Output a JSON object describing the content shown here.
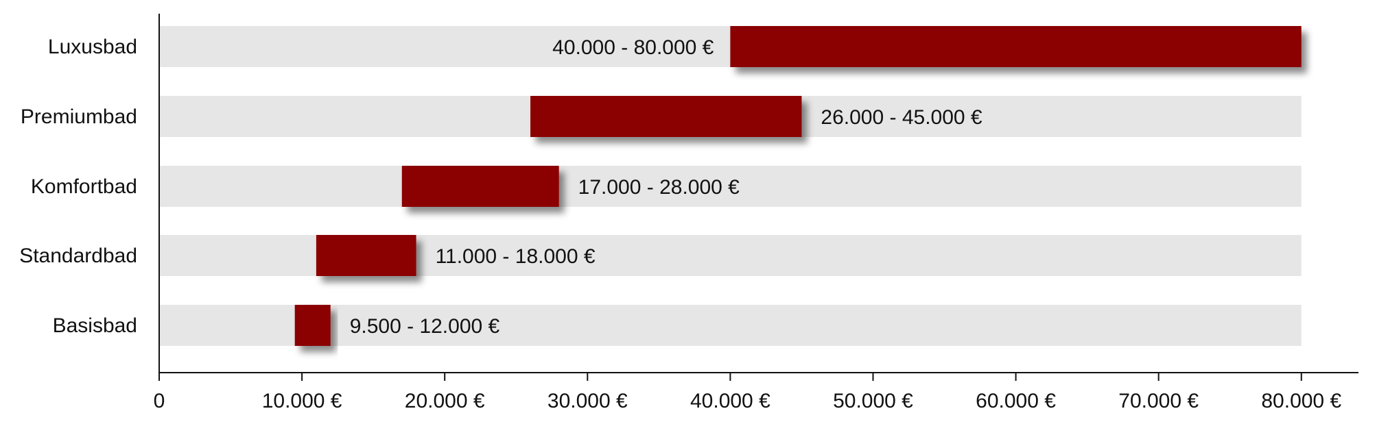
{
  "chart_data": {
    "type": "bar",
    "orientation": "horizontal",
    "subtype": "floating-range",
    "categories": [
      "Luxusbad",
      "Premiumbad",
      "Komfortbad",
      "Standardbad",
      "Basisbad"
    ],
    "ranges": [
      {
        "category": "Luxusbad",
        "min": 40000,
        "max": 80000,
        "label": "40.000 - 80.000 €"
      },
      {
        "category": "Premiumbad",
        "min": 26000,
        "max": 45000,
        "label": "26.000 - 45.000 €"
      },
      {
        "category": "Komfortbad",
        "min": 17000,
        "max": 28000,
        "label": "17.000 - 28.000 €"
      },
      {
        "category": "Standardbad",
        "min": 11000,
        "max": 18000,
        "label": "11.000 - 18.000 €"
      },
      {
        "category": "Basisbad",
        "min": 9500,
        "max": 12000,
        "label": "9.500 - 12.000 €"
      }
    ],
    "xlim": [
      0,
      84000
    ],
    "background_track_max": 80000,
    "xticks": [
      0,
      10000,
      20000,
      30000,
      40000,
      50000,
      60000,
      70000,
      80000
    ],
    "xtick_labels": [
      "0",
      "10.000 €",
      "20.000 €",
      "30.000 €",
      "40.000 €",
      "50.000 €",
      "60.000 €",
      "70.000 €",
      "80.000 €"
    ],
    "label_placement": {
      "Luxusbad": "left",
      "Premiumbad": "right",
      "Komfortbad": "right",
      "Standardbad": "right",
      "Basisbad": "right"
    },
    "title": "",
    "xlabel": "",
    "ylabel": "",
    "grid": false,
    "legend": "none",
    "colors": {
      "bar": "#8b0000",
      "track": "#e6e6e6",
      "axis": "#111111",
      "text": "#111111",
      "shadow": "#000000"
    }
  }
}
